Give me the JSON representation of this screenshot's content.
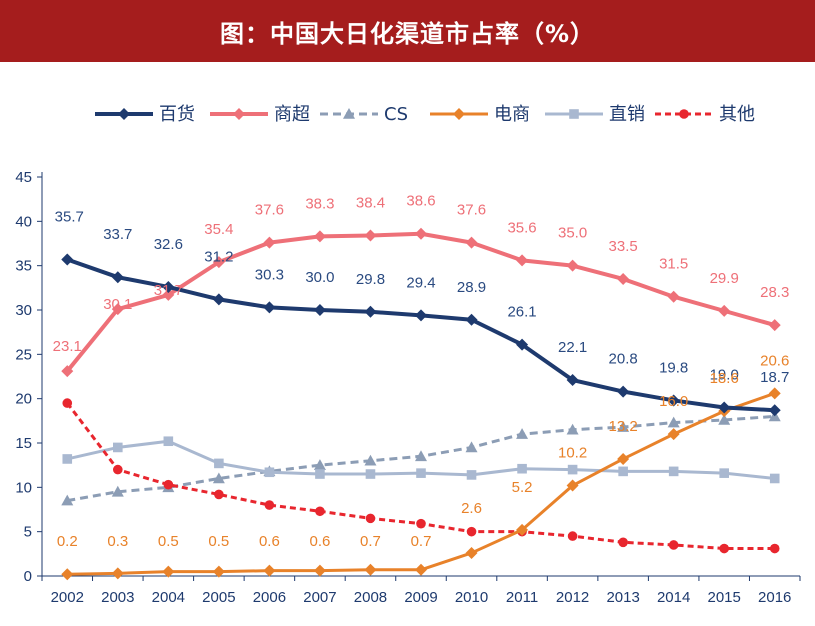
{
  "title": "图：中国大日化渠道市占率（%）",
  "chart_data": {
    "type": "line",
    "title": "图：中国大日化渠道市占率（%）",
    "xlabel": "",
    "ylabel": "",
    "ylim": [
      0,
      45
    ],
    "yticks": [
      0,
      5,
      10,
      15,
      20,
      25,
      30,
      35,
      40,
      45
    ],
    "x": [
      "2002",
      "2003",
      "2004",
      "2005",
      "2006",
      "2007",
      "2008",
      "2009",
      "2010",
      "2011",
      "2012",
      "2013",
      "2014",
      "2015",
      "2016"
    ],
    "legend_position": "top",
    "series": [
      {
        "name": "百货",
        "color": "#1e3a6e",
        "dash": "",
        "marker": "diamond",
        "stroke_width": 4,
        "values": [
          35.7,
          33.7,
          32.6,
          31.2,
          30.3,
          30.0,
          29.8,
          29.4,
          28.9,
          26.1,
          22.1,
          20.8,
          19.8,
          19.0,
          18.7
        ],
        "labels": [
          "35.7",
          "33.7",
          "32.6",
          "31.2",
          "30.3",
          "30.0",
          "29.8",
          "29.4",
          "28.9",
          "26.1",
          "22.1",
          "20.8",
          "19.8",
          "19.0",
          "18.7"
        ]
      },
      {
        "name": "商超",
        "color": "#ee7078",
        "dash": "",
        "marker": "diamond",
        "stroke_width": 4,
        "values": [
          23.1,
          30.1,
          31.7,
          35.4,
          37.6,
          38.3,
          38.4,
          38.6,
          37.6,
          35.6,
          35.0,
          33.5,
          31.5,
          29.9,
          28.3
        ],
        "labels": [
          "23.1",
          "30.1",
          "31.7",
          "35.4",
          "37.6",
          "38.3",
          "38.4",
          "38.6",
          "37.6",
          "35.6",
          "35.0",
          "33.5",
          "31.5",
          "29.9",
          "28.3"
        ]
      },
      {
        "name": "CS",
        "color": "#8c9db5",
        "dash": "8,5",
        "marker": "triangle",
        "stroke_width": 3,
        "values": [
          8.5,
          9.5,
          10.0,
          11.0,
          11.8,
          12.5,
          13.0,
          13.5,
          14.5,
          16.0,
          16.5,
          16.8,
          17.3,
          17.6,
          18.0
        ],
        "labels": []
      },
      {
        "name": "电商",
        "color": "#e8822a",
        "dash": "",
        "marker": "diamond",
        "stroke_width": 3,
        "values": [
          0.2,
          0.3,
          0.5,
          0.5,
          0.6,
          0.6,
          0.7,
          0.7,
          2.6,
          5.2,
          10.2,
          13.2,
          16.0,
          18.6,
          20.6
        ],
        "labels": [
          "0.2",
          "0.3",
          "0.5",
          "0.5",
          "0.6",
          "0.6",
          "0.7",
          "0.7",
          "2.6",
          "5.2",
          "10.2",
          "13.2",
          "16.0",
          "18.6",
          "20.6"
        ]
      },
      {
        "name": "直销",
        "color": "#a9b8d0",
        "dash": "",
        "marker": "square",
        "stroke_width": 3,
        "values": [
          13.2,
          14.5,
          15.2,
          12.7,
          11.7,
          11.5,
          11.5,
          11.6,
          11.4,
          12.1,
          12.0,
          11.8,
          11.8,
          11.6,
          11.0
        ],
        "labels": []
      },
      {
        "name": "其他",
        "color": "#e8262e",
        "dash": "6,4",
        "marker": "circle",
        "stroke_width": 3,
        "values": [
          19.5,
          12.0,
          10.3,
          9.2,
          8.0,
          7.3,
          6.5,
          5.9,
          5.0,
          5.0,
          4.5,
          3.8,
          3.5,
          3.1,
          3.1
        ],
        "labels": []
      }
    ]
  }
}
